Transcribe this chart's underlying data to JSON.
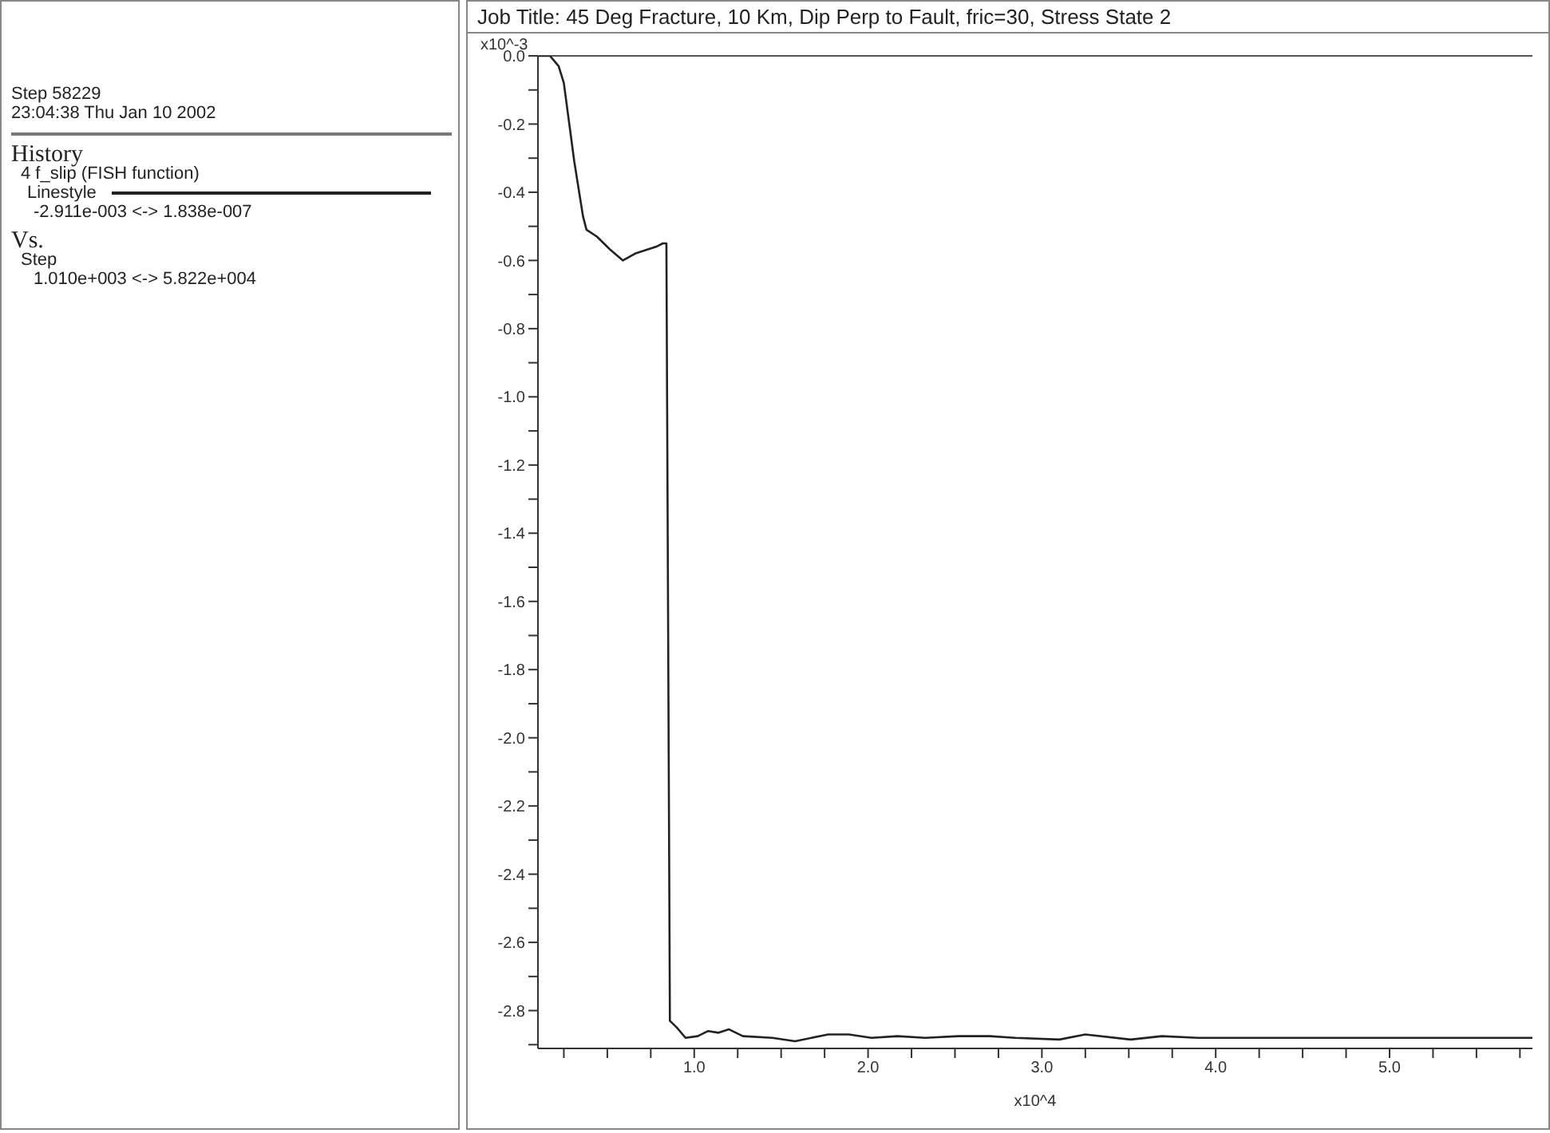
{
  "chart_data": {
    "type": "line",
    "title": "Job Title: 45 Deg Fracture, 10 Km, Dip Perp to Fault, fric=30, Stress State 2",
    "xlabel": "x10^4",
    "ylabel": "x10^-3",
    "annotations": [
      "Step 58229",
      "23:04:38 Thu Jan 10 2002",
      "History",
      "4 f_slip (FISH function)",
      "Linestyle",
      "-2.911e-003 <-> 1.838e-007",
      "Vs.",
      "Step",
      "1.010e+003 <-> 5.822e+004"
    ],
    "x": [
      0.101,
      0.17,
      0.22,
      0.25,
      0.31,
      0.36,
      0.38,
      0.44,
      0.52,
      0.59,
      0.66,
      0.72,
      0.78,
      0.82,
      0.84,
      0.86,
      0.9,
      0.95,
      1.02,
      1.08,
      1.14,
      1.2,
      1.28,
      1.45,
      1.58,
      1.77,
      1.89,
      2.02,
      2.17,
      2.33,
      2.52,
      2.7,
      2.85,
      3.1,
      3.25,
      3.51,
      3.69,
      3.9,
      4.5,
      5.2,
      5.822
    ],
    "series": [
      {
        "color": "#222222",
        "values": [
          0,
          0,
          -0.03,
          -0.08,
          -0.31,
          -0.47,
          -0.51,
          -0.53,
          -0.57,
          -0.6,
          -0.58,
          -0.57,
          -0.56,
          -0.55,
          -0.55,
          -2.83,
          -2.85,
          -2.88,
          -2.875,
          -2.86,
          -2.865,
          -2.855,
          -2.875,
          -2.88,
          -2.89,
          -2.87,
          -2.87,
          -2.88,
          -2.875,
          -2.88,
          -2.875,
          -2.875,
          -2.88,
          -2.885,
          -2.87,
          -2.885,
          -2.875,
          -2.88,
          -2.88,
          -2.88,
          -2.88
        ]
      }
    ],
    "xlim": [
      0.101,
      5.822
    ],
    "xticks": [
      {
        "value": 0.25,
        "label": null
      },
      {
        "value": 0.5,
        "label": null
      },
      {
        "value": 0.75,
        "label": null
      },
      {
        "value": 1,
        "label": "1.0"
      },
      {
        "value": 1.25,
        "label": null
      },
      {
        "value": 1.5,
        "label": null
      },
      {
        "value": 1.75,
        "label": null
      },
      {
        "value": 2,
        "label": "2.0"
      },
      {
        "value": 2.25,
        "label": null
      },
      {
        "value": 2.5,
        "label": null
      },
      {
        "value": 2.75,
        "label": null
      },
      {
        "value": 3,
        "label": "3.0"
      },
      {
        "value": 3.25,
        "label": null
      },
      {
        "value": 3.5,
        "label": null
      },
      {
        "value": 3.75,
        "label": null
      },
      {
        "value": 4,
        "label": "4.0"
      },
      {
        "value": 4.25,
        "label": null
      },
      {
        "value": 4.5,
        "label": null
      },
      {
        "value": 4.75,
        "label": null
      },
      {
        "value": 5,
        "label": "5.0"
      },
      {
        "value": 5.25,
        "label": null
      },
      {
        "value": 5.5,
        "label": null
      },
      {
        "value": 5.75,
        "label": null
      }
    ],
    "ylim": [
      -2.911,
      0
    ],
    "yticks": [
      {
        "value": 0,
        "label": "0.0"
      },
      {
        "value": -0.1,
        "label": null
      },
      {
        "value": -0.2,
        "label": "-0.2"
      },
      {
        "value": -0.3,
        "label": null
      },
      {
        "value": -0.4,
        "label": "-0.4"
      },
      {
        "value": -0.5,
        "label": null
      },
      {
        "value": -0.6,
        "label": "-0.6"
      },
      {
        "value": -0.7,
        "label": null
      },
      {
        "value": -0.8,
        "label": "-0.8"
      },
      {
        "value": -0.9,
        "label": null
      },
      {
        "value": -1,
        "label": "-1.0"
      },
      {
        "value": -1.1,
        "label": null
      },
      {
        "value": -1.2,
        "label": "-1.2"
      },
      {
        "value": -1.3,
        "label": null
      },
      {
        "value": -1.4,
        "label": "-1.4"
      },
      {
        "value": -1.5,
        "label": null
      },
      {
        "value": -1.6,
        "label": "-1.6"
      },
      {
        "value": -1.7,
        "label": null
      },
      {
        "value": -1.8,
        "label": "-1.8"
      },
      {
        "value": -1.9,
        "label": null
      },
      {
        "value": -2,
        "label": "-2.0"
      },
      {
        "value": -2.1,
        "label": null
      },
      {
        "value": -2.2,
        "label": "-2.2"
      },
      {
        "value": -2.3,
        "label": null
      },
      {
        "value": -2.4,
        "label": "-2.4"
      },
      {
        "value": -2.5,
        "label": null
      },
      {
        "value": -2.6,
        "label": "-2.6"
      },
      {
        "value": -2.7,
        "label": null
      },
      {
        "value": -2.8,
        "label": "-2.8"
      },
      {
        "value": -2.9,
        "label": null
      }
    ],
    "ref_lines": [
      {
        "axis": "y",
        "value": 0,
        "color": "#555555"
      }
    ]
  }
}
